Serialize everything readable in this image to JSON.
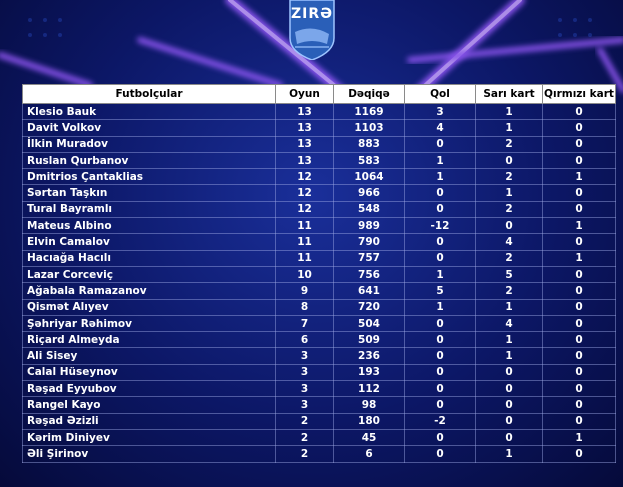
{
  "logo": {
    "name": "ZIRƏ"
  },
  "table": {
    "headers": [
      "Futbolçular",
      "Oyun",
      "Dəqiqə",
      "Qol",
      "Sarı kart",
      "Qırmızı kart"
    ],
    "rows": [
      [
        "Klesio Bauk",
        "13",
        "1169",
        "3",
        "1",
        "0"
      ],
      [
        "Davit Volkov",
        "13",
        "1103",
        "4",
        "1",
        "0"
      ],
      [
        "İlkin Muradov",
        "13",
        "883",
        "0",
        "2",
        "0"
      ],
      [
        "Ruslan Qurbanov",
        "13",
        "583",
        "1",
        "0",
        "0"
      ],
      [
        "Dmitrios Çantaklias",
        "12",
        "1064",
        "1",
        "2",
        "1"
      ],
      [
        "Sərtan Taşkın",
        "12",
        "966",
        "0",
        "1",
        "0"
      ],
      [
        "Tural Bayramlı",
        "12",
        "548",
        "0",
        "2",
        "0"
      ],
      [
        "Mateus Albino",
        "11",
        "989",
        "-12",
        "0",
        "1"
      ],
      [
        "Elvin Camalov",
        "11",
        "790",
        "0",
        "4",
        "0"
      ],
      [
        "Hacıağa Hacılı",
        "11",
        "757",
        "0",
        "2",
        "1"
      ],
      [
        "Lazar Corceviç",
        "10",
        "756",
        "1",
        "5",
        "0"
      ],
      [
        "Ağabala Ramazanov",
        "9",
        "641",
        "5",
        "2",
        "0"
      ],
      [
        "Qismət Alıyev",
        "8",
        "720",
        "1",
        "1",
        "0"
      ],
      [
        "Şəhriyar Rəhimov",
        "7",
        "504",
        "0",
        "4",
        "0"
      ],
      [
        "Riçard Almeyda",
        "6",
        "509",
        "0",
        "1",
        "0"
      ],
      [
        "Ali Sisey",
        "3",
        "236",
        "0",
        "1",
        "0"
      ],
      [
        "Calal Hüseynov",
        "3",
        "193",
        "0",
        "0",
        "0"
      ],
      [
        "Rəşad Eyyubov",
        "3",
        "112",
        "0",
        "0",
        "0"
      ],
      [
        "Rangel Kayo",
        "3",
        "98",
        "0",
        "0",
        "0"
      ],
      [
        "Rəşad Əzizli",
        "2",
        "180",
        "-2",
        "0",
        "0"
      ],
      [
        "Kərim Diniyev",
        "2",
        "45",
        "0",
        "0",
        "1"
      ],
      [
        "Əli Şirinov",
        "2",
        "6",
        "0",
        "1",
        "0"
      ]
    ]
  }
}
